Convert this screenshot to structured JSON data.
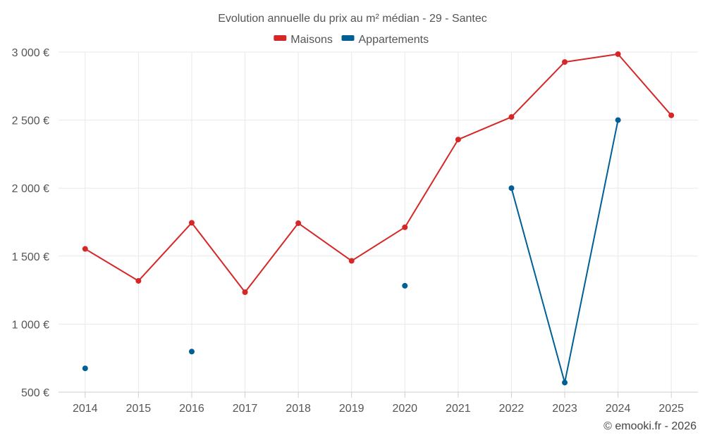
{
  "chart_data": {
    "type": "line",
    "title": "Evolution annuelle du prix au m² médian - 29 - Santec",
    "xlabel": "",
    "ylabel": "",
    "categories": [
      "2014",
      "2015",
      "2016",
      "2017",
      "2018",
      "2019",
      "2020",
      "2021",
      "2022",
      "2023",
      "2024",
      "2025"
    ],
    "ylim": [
      500,
      3000
    ],
    "yticks": [
      500,
      1000,
      1500,
      2000,
      2500,
      3000
    ],
    "ytick_labels": [
      "500 €",
      "1 000 €",
      "1 500 €",
      "2 000 €",
      "2 500 €",
      "3 000 €"
    ],
    "legend_position": "top-center",
    "grid": true,
    "series": [
      {
        "name": "Maisons",
        "color": "#d62728",
        "values": [
          1553,
          1318,
          1745,
          1235,
          1742,
          1465,
          1712,
          2357,
          2523,
          2927,
          2985,
          2535
        ]
      },
      {
        "name": "Appartements",
        "color": "#005f95",
        "values": [
          675,
          null,
          798,
          null,
          null,
          null,
          1282,
          null,
          2000,
          570,
          2500,
          null
        ]
      }
    ]
  },
  "credit": "© emooki.fr - 2026"
}
